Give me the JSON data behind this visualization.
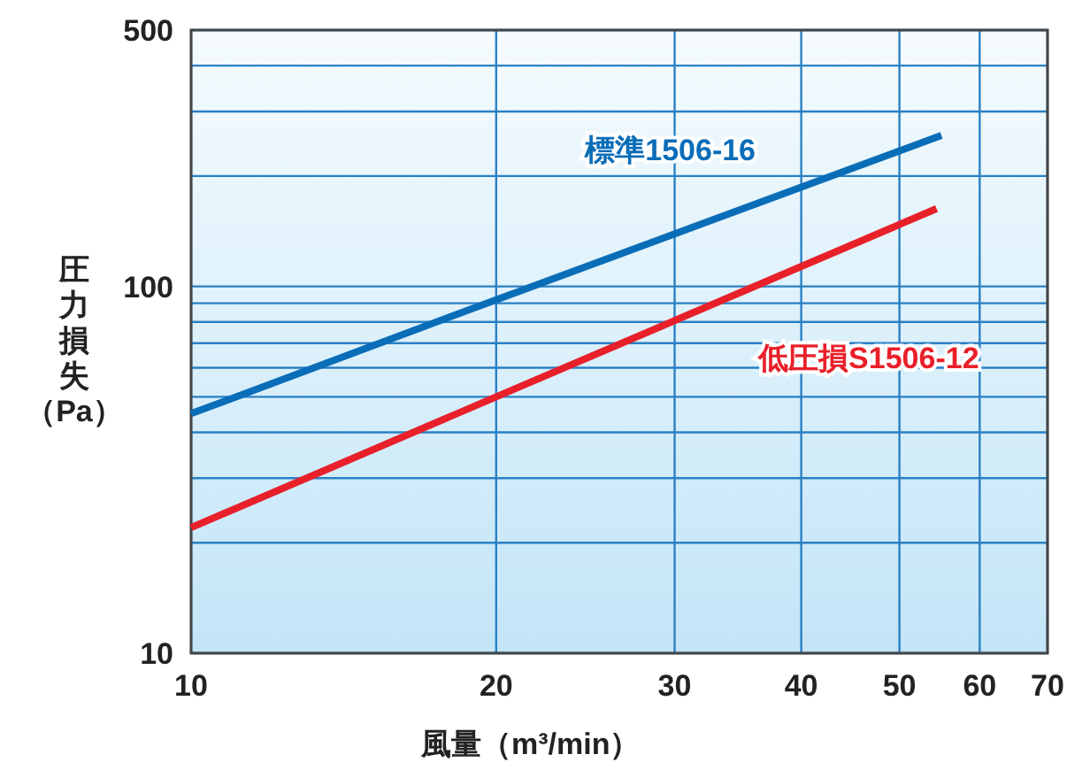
{
  "chart_data": {
    "type": "line",
    "xlabel": "風量（m³/min）",
    "ylabel": "圧力損失（Pa）",
    "log": "xy",
    "grid": true,
    "xlim": [
      10,
      70
    ],
    "ylim": [
      10,
      500
    ],
    "xticks": [
      10,
      20,
      30,
      40,
      50,
      60,
      70
    ],
    "yticks": [
      10,
      {
        "value": 20,
        "label": null
      },
      {
        "value": 30,
        "label": null
      },
      {
        "value": 40,
        "label": null
      },
      {
        "value": 50,
        "label": null
      },
      {
        "value": 60,
        "label": null
      },
      {
        "value": 70,
        "label": null
      },
      {
        "value": 80,
        "label": null
      },
      {
        "value": 90,
        "label": null
      },
      100,
      {
        "value": 200,
        "label": null
      },
      {
        "value": 300,
        "label": null
      },
      {
        "value": 400,
        "label": null
      },
      500
    ],
    "series": [
      {
        "name": "標準1506-16",
        "color": "#0a6db8",
        "x": [
          10,
          20,
          55
        ],
        "values": [
          45,
          92,
          258
        ]
      },
      {
        "name": "低圧損S1506-12",
        "color": "#e8202a",
        "x": [
          10,
          20,
          54.4
        ],
        "values": [
          22,
          50,
          163
        ]
      }
    ]
  }
}
